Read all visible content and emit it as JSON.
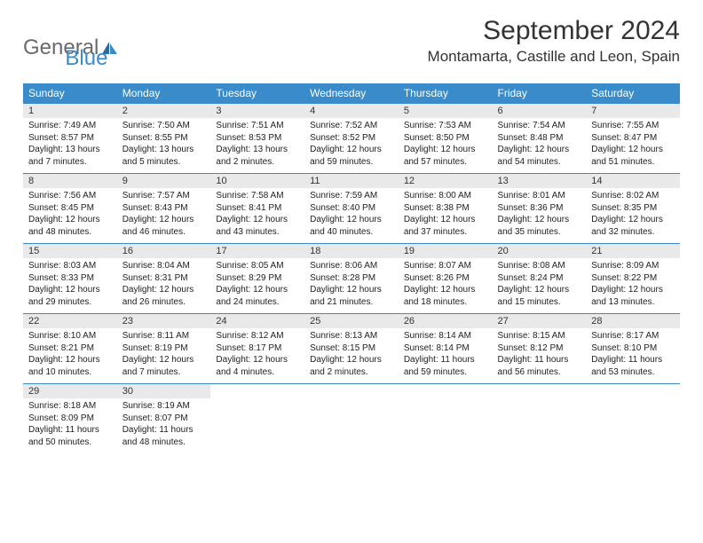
{
  "logo": {
    "text1": "General",
    "text2": "Blue"
  },
  "title": "September 2024",
  "location": "Montamarta, Castille and Leon, Spain",
  "colors": {
    "header_bg": "#3a8bc9",
    "header_text": "#ffffff",
    "daynum_bg": "#e9e9e9",
    "border": "#3a8bc9",
    "logo_gray": "#6a6a6a",
    "logo_blue": "#3a8bc9",
    "text": "#333333",
    "background": "#ffffff"
  },
  "typography": {
    "title_fontsize": 30,
    "location_fontsize": 17,
    "weekday_fontsize": 12,
    "daynum_fontsize": 11,
    "cell_fontsize": 10
  },
  "weekdays": [
    "Sunday",
    "Monday",
    "Tuesday",
    "Wednesday",
    "Thursday",
    "Friday",
    "Saturday"
  ],
  "weeks": [
    [
      {
        "n": "1",
        "sr": "Sunrise: 7:49 AM",
        "ss": "Sunset: 8:57 PM",
        "d1": "Daylight: 13 hours",
        "d2": "and 7 minutes."
      },
      {
        "n": "2",
        "sr": "Sunrise: 7:50 AM",
        "ss": "Sunset: 8:55 PM",
        "d1": "Daylight: 13 hours",
        "d2": "and 5 minutes."
      },
      {
        "n": "3",
        "sr": "Sunrise: 7:51 AM",
        "ss": "Sunset: 8:53 PM",
        "d1": "Daylight: 13 hours",
        "d2": "and 2 minutes."
      },
      {
        "n": "4",
        "sr": "Sunrise: 7:52 AM",
        "ss": "Sunset: 8:52 PM",
        "d1": "Daylight: 12 hours",
        "d2": "and 59 minutes."
      },
      {
        "n": "5",
        "sr": "Sunrise: 7:53 AM",
        "ss": "Sunset: 8:50 PM",
        "d1": "Daylight: 12 hours",
        "d2": "and 57 minutes."
      },
      {
        "n": "6",
        "sr": "Sunrise: 7:54 AM",
        "ss": "Sunset: 8:48 PM",
        "d1": "Daylight: 12 hours",
        "d2": "and 54 minutes."
      },
      {
        "n": "7",
        "sr": "Sunrise: 7:55 AM",
        "ss": "Sunset: 8:47 PM",
        "d1": "Daylight: 12 hours",
        "d2": "and 51 minutes."
      }
    ],
    [
      {
        "n": "8",
        "sr": "Sunrise: 7:56 AM",
        "ss": "Sunset: 8:45 PM",
        "d1": "Daylight: 12 hours",
        "d2": "and 48 minutes."
      },
      {
        "n": "9",
        "sr": "Sunrise: 7:57 AM",
        "ss": "Sunset: 8:43 PM",
        "d1": "Daylight: 12 hours",
        "d2": "and 46 minutes."
      },
      {
        "n": "10",
        "sr": "Sunrise: 7:58 AM",
        "ss": "Sunset: 8:41 PM",
        "d1": "Daylight: 12 hours",
        "d2": "and 43 minutes."
      },
      {
        "n": "11",
        "sr": "Sunrise: 7:59 AM",
        "ss": "Sunset: 8:40 PM",
        "d1": "Daylight: 12 hours",
        "d2": "and 40 minutes."
      },
      {
        "n": "12",
        "sr": "Sunrise: 8:00 AM",
        "ss": "Sunset: 8:38 PM",
        "d1": "Daylight: 12 hours",
        "d2": "and 37 minutes."
      },
      {
        "n": "13",
        "sr": "Sunrise: 8:01 AM",
        "ss": "Sunset: 8:36 PM",
        "d1": "Daylight: 12 hours",
        "d2": "and 35 minutes."
      },
      {
        "n": "14",
        "sr": "Sunrise: 8:02 AM",
        "ss": "Sunset: 8:35 PM",
        "d1": "Daylight: 12 hours",
        "d2": "and 32 minutes."
      }
    ],
    [
      {
        "n": "15",
        "sr": "Sunrise: 8:03 AM",
        "ss": "Sunset: 8:33 PM",
        "d1": "Daylight: 12 hours",
        "d2": "and 29 minutes."
      },
      {
        "n": "16",
        "sr": "Sunrise: 8:04 AM",
        "ss": "Sunset: 8:31 PM",
        "d1": "Daylight: 12 hours",
        "d2": "and 26 minutes."
      },
      {
        "n": "17",
        "sr": "Sunrise: 8:05 AM",
        "ss": "Sunset: 8:29 PM",
        "d1": "Daylight: 12 hours",
        "d2": "and 24 minutes."
      },
      {
        "n": "18",
        "sr": "Sunrise: 8:06 AM",
        "ss": "Sunset: 8:28 PM",
        "d1": "Daylight: 12 hours",
        "d2": "and 21 minutes."
      },
      {
        "n": "19",
        "sr": "Sunrise: 8:07 AM",
        "ss": "Sunset: 8:26 PM",
        "d1": "Daylight: 12 hours",
        "d2": "and 18 minutes."
      },
      {
        "n": "20",
        "sr": "Sunrise: 8:08 AM",
        "ss": "Sunset: 8:24 PM",
        "d1": "Daylight: 12 hours",
        "d2": "and 15 minutes."
      },
      {
        "n": "21",
        "sr": "Sunrise: 8:09 AM",
        "ss": "Sunset: 8:22 PM",
        "d1": "Daylight: 12 hours",
        "d2": "and 13 minutes."
      }
    ],
    [
      {
        "n": "22",
        "sr": "Sunrise: 8:10 AM",
        "ss": "Sunset: 8:21 PM",
        "d1": "Daylight: 12 hours",
        "d2": "and 10 minutes."
      },
      {
        "n": "23",
        "sr": "Sunrise: 8:11 AM",
        "ss": "Sunset: 8:19 PM",
        "d1": "Daylight: 12 hours",
        "d2": "and 7 minutes."
      },
      {
        "n": "24",
        "sr": "Sunrise: 8:12 AM",
        "ss": "Sunset: 8:17 PM",
        "d1": "Daylight: 12 hours",
        "d2": "and 4 minutes."
      },
      {
        "n": "25",
        "sr": "Sunrise: 8:13 AM",
        "ss": "Sunset: 8:15 PM",
        "d1": "Daylight: 12 hours",
        "d2": "and 2 minutes."
      },
      {
        "n": "26",
        "sr": "Sunrise: 8:14 AM",
        "ss": "Sunset: 8:14 PM",
        "d1": "Daylight: 11 hours",
        "d2": "and 59 minutes."
      },
      {
        "n": "27",
        "sr": "Sunrise: 8:15 AM",
        "ss": "Sunset: 8:12 PM",
        "d1": "Daylight: 11 hours",
        "d2": "and 56 minutes."
      },
      {
        "n": "28",
        "sr": "Sunrise: 8:17 AM",
        "ss": "Sunset: 8:10 PM",
        "d1": "Daylight: 11 hours",
        "d2": "and 53 minutes."
      }
    ],
    [
      {
        "n": "29",
        "sr": "Sunrise: 8:18 AM",
        "ss": "Sunset: 8:09 PM",
        "d1": "Daylight: 11 hours",
        "d2": "and 50 minutes."
      },
      {
        "n": "30",
        "sr": "Sunrise: 8:19 AM",
        "ss": "Sunset: 8:07 PM",
        "d1": "Daylight: 11 hours",
        "d2": "and 48 minutes."
      },
      {
        "empty": true
      },
      {
        "empty": true
      },
      {
        "empty": true
      },
      {
        "empty": true
      },
      {
        "empty": true
      }
    ]
  ]
}
